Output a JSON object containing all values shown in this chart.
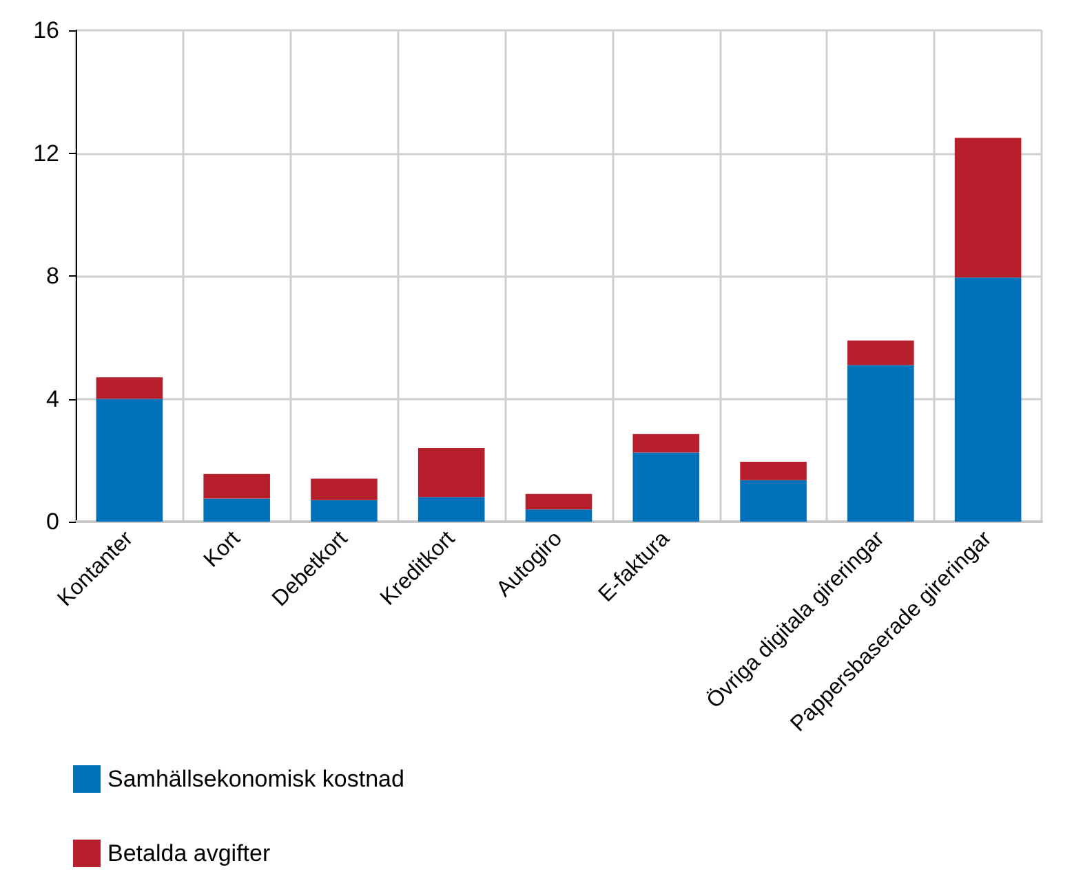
{
  "chart_data": {
    "type": "bar",
    "stacked": true,
    "categories": [
      "Kontanter",
      "Kort",
      "Debetkort",
      "Kreditkort",
      "Autogiro",
      "E-faktura",
      null,
      "Övriga digitala gireringar",
      "Pappersbaserade gireringar"
    ],
    "series": [
      {
        "name": "Samhällsekonomisk kostnad",
        "color": "#0070b8",
        "values": [
          4.0,
          0.75,
          0.7,
          0.8,
          0.4,
          2.25,
          1.35,
          5.1,
          7.95
        ]
      },
      {
        "name": "Betalda avgifter",
        "color": "#b81f2d",
        "values": [
          0.7,
          0.8,
          0.7,
          1.6,
          0.5,
          0.6,
          0.6,
          0.8,
          4.55
        ]
      }
    ],
    "ylim": [
      0,
      16
    ],
    "yticks": [
      0,
      4,
      8,
      12,
      16
    ],
    "grid": true,
    "legend": "bottom left"
  }
}
